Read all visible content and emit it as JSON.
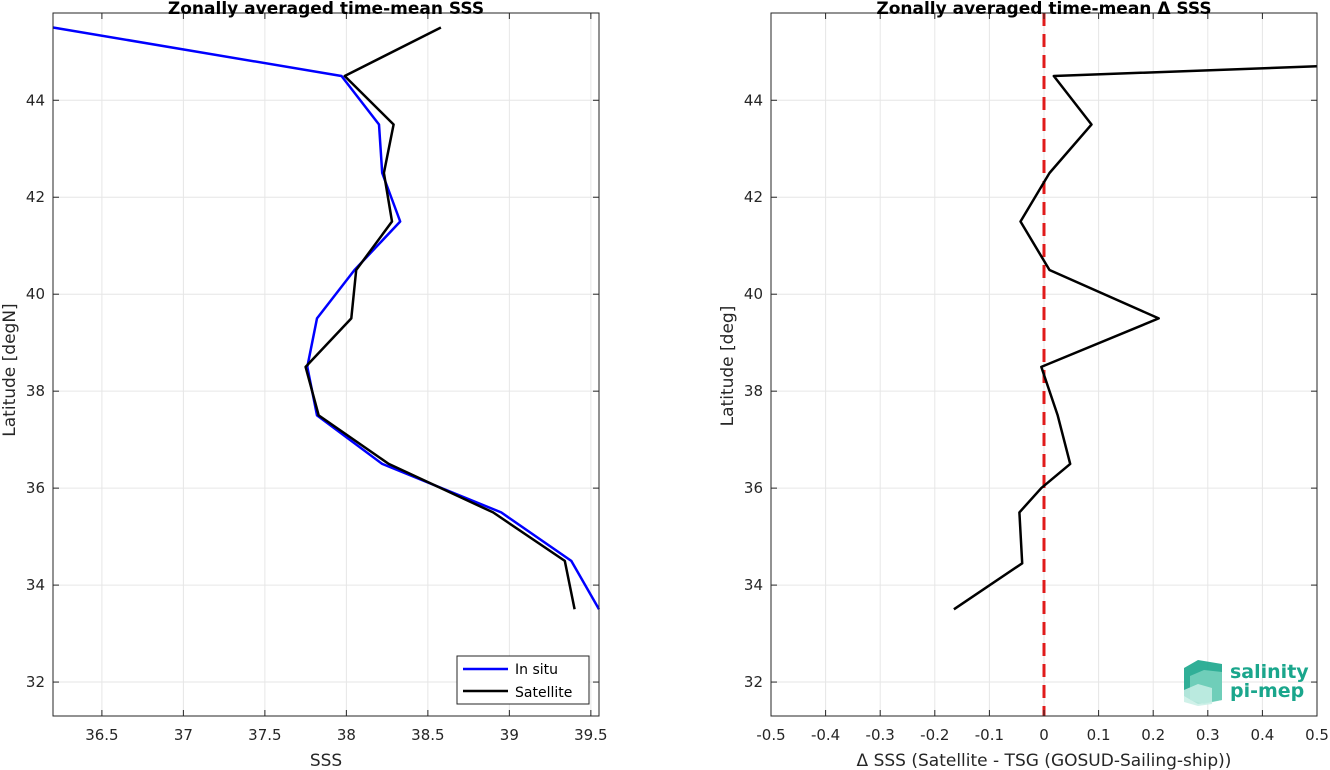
{
  "chart_data": [
    {
      "type": "line",
      "title": "Zonally averaged time-mean SSS",
      "xlabel": "SSS",
      "ylabel": "Latitude [degN]",
      "xlim": [
        36.2,
        39.55
      ],
      "ylim": [
        31.3,
        45.8
      ],
      "xticks": [
        36.5,
        37,
        37.5,
        38,
        38.5,
        39,
        39.5
      ],
      "xtick_labels": [
        "36.5",
        "37",
        "37.5",
        "38",
        "38.5",
        "39",
        "39.5"
      ],
      "yticks": [
        32,
        34,
        36,
        38,
        40,
        42,
        44
      ],
      "ytick_labels": [
        "32",
        "34",
        "36",
        "38",
        "40",
        "42",
        "44"
      ],
      "grid": true,
      "legend_position": "bottom-right",
      "series": [
        {
          "name": "In situ",
          "color": "#0000ff",
          "points": [
            [
              39.55,
              33.5
            ],
            [
              39.38,
              34.5
            ],
            [
              38.95,
              35.5
            ],
            [
              38.22,
              36.5
            ],
            [
              37.82,
              37.5
            ],
            [
              37.76,
              38.5
            ],
            [
              37.82,
              39.5
            ],
            [
              38.05,
              40.5
            ],
            [
              38.33,
              41.5
            ],
            [
              38.22,
              42.5
            ],
            [
              38.2,
              43.5
            ],
            [
              37.97,
              44.5
            ],
            [
              36.2,
              45.5
            ]
          ]
        },
        {
          "name": "Satellite",
          "color": "#000000",
          "points": [
            [
              39.4,
              33.5
            ],
            [
              39.34,
              34.5
            ],
            [
              38.9,
              35.5
            ],
            [
              38.26,
              36.5
            ],
            [
              37.83,
              37.5
            ],
            [
              37.75,
              38.5
            ],
            [
              38.03,
              39.5
            ],
            [
              38.06,
              40.5
            ],
            [
              38.28,
              41.5
            ],
            [
              38.23,
              42.5
            ],
            [
              38.29,
              43.5
            ],
            [
              37.99,
              44.5
            ],
            [
              38.58,
              45.5
            ]
          ]
        }
      ]
    },
    {
      "type": "line",
      "title": "Zonally averaged time-mean Δ SSS",
      "xlabel": "Δ SSS (Satellite - TSG (GOSUD-Sailing-ship))",
      "ylabel": "Latitude [deg]",
      "xlim": [
        -0.5,
        0.5
      ],
      "ylim": [
        31.3,
        45.8
      ],
      "xticks": [
        -0.5,
        -0.4,
        -0.3,
        -0.2,
        -0.1,
        0,
        0.1,
        0.2,
        0.3,
        0.4,
        0.5
      ],
      "xtick_labels": [
        "-0.5",
        "-0.4",
        "-0.3",
        "-0.2",
        "-0.1",
        "0",
        "0.1",
        "0.2",
        "0.3",
        "0.4",
        "0.5"
      ],
      "yticks": [
        32,
        34,
        36,
        38,
        40,
        42,
        44
      ],
      "ytick_labels": [
        "32",
        "34",
        "36",
        "38",
        "40",
        "42",
        "44"
      ],
      "grid": true,
      "series": [
        {
          "color": "#000000",
          "points": [
            [
              -0.165,
              33.5
            ],
            [
              -0.04,
              34.45
            ],
            [
              -0.045,
              35.5
            ],
            [
              -0.005,
              36.0
            ],
            [
              0.048,
              36.5
            ],
            [
              0.025,
              37.5
            ],
            [
              -0.005,
              38.5
            ],
            [
              0.21,
              39.5
            ],
            [
              0.01,
              40.5
            ],
            [
              -0.043,
              41.5
            ],
            [
              0.01,
              42.5
            ],
            [
              0.087,
              43.5
            ],
            [
              0.018,
              44.5
            ],
            [
              0.5,
              44.7
            ]
          ]
        }
      ],
      "reference_line": {
        "x": 0,
        "color": "#e01b1b",
        "style": "dashed"
      }
    }
  ],
  "logo": {
    "line1": "salinity",
    "line2": "pi-mep",
    "color": "#1aa68c"
  }
}
